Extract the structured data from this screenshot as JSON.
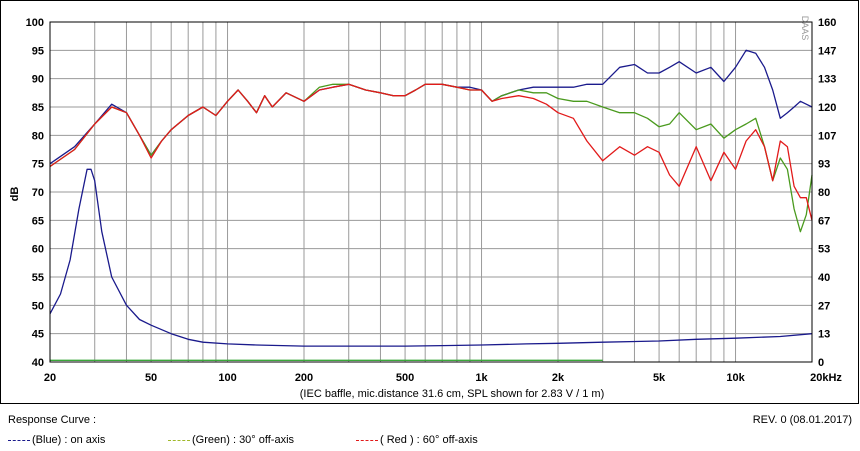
{
  "chart_data": {
    "type": "line",
    "xscale": "log",
    "xlim": [
      20,
      20000
    ],
    "ylim": [
      40,
      100
    ],
    "ylim_right": [
      0,
      160
    ],
    "ylabel": "dB",
    "watermark": "DAAS",
    "caption": "(IEC baffle, mic.distance 31.6 cm, SPL shown for 2.83 V / 1 m)",
    "x_ticks": [
      20,
      50,
      100,
      200,
      500,
      1000,
      2000,
      5000,
      10000,
      20000
    ],
    "x_tick_labels": [
      "20",
      "50",
      "100",
      "200",
      "500",
      "1k",
      "2k",
      "5k",
      "10k",
      "20kHz"
    ],
    "y_ticks": [
      40,
      45,
      50,
      55,
      60,
      65,
      70,
      75,
      80,
      85,
      90,
      95,
      100
    ],
    "y_tick_labels": [
      "40",
      "45",
      "50",
      "55",
      "60",
      "65",
      "70",
      "75",
      "80",
      "85",
      "90",
      "95",
      "100"
    ],
    "y2_tick_labels": [
      "0",
      "13",
      "27",
      "40",
      "53",
      "67",
      "80",
      "93",
      "107",
      "120",
      "133",
      "147",
      "160"
    ],
    "series": [
      {
        "name": "(Blue) : on axis",
        "color": "#1a1a8c",
        "x": [
          20,
          25,
          30,
          35,
          40,
          45,
          50,
          55,
          60,
          70,
          80,
          90,
          100,
          110,
          120,
          130,
          140,
          150,
          170,
          200,
          230,
          260,
          300,
          350,
          400,
          450,
          500,
          550,
          600,
          700,
          800,
          900,
          1000,
          1100,
          1200,
          1400,
          1600,
          1800,
          2000,
          2300,
          2600,
          3000,
          3500,
          4000,
          4500,
          5000,
          5500,
          6000,
          7000,
          8000,
          9000,
          10000,
          11000,
          12000,
          13000,
          14000,
          15000,
          16000,
          17000,
          18000,
          19000,
          20000
        ],
        "y": [
          75,
          78,
          82,
          85.5,
          84,
          80,
          76.5,
          79,
          81,
          83.5,
          85,
          83.5,
          86,
          88,
          86,
          84,
          87,
          85,
          87.5,
          86,
          88,
          88.5,
          89,
          88,
          87.5,
          87,
          87,
          88,
          89,
          89,
          88.5,
          88.5,
          88,
          86,
          87,
          88,
          88.5,
          88.5,
          88.5,
          88.5,
          89,
          89,
          92,
          92.5,
          91,
          91,
          92,
          93,
          91,
          92,
          89.5,
          92,
          95,
          94.5,
          92,
          88,
          83,
          84,
          85,
          86,
          85.5,
          85
        ]
      },
      {
        "name": "(Green) : 30° off-axis",
        "color": "#4a9a1e",
        "x": [
          20,
          25,
          30,
          35,
          40,
          45,
          50,
          55,
          60,
          70,
          80,
          90,
          100,
          110,
          120,
          130,
          140,
          150,
          170,
          200,
          230,
          260,
          300,
          350,
          400,
          450,
          500,
          550,
          600,
          700,
          800,
          900,
          1000,
          1100,
          1200,
          1400,
          1600,
          1800,
          2000,
          2300,
          2600,
          3000,
          3500,
          4000,
          4500,
          5000,
          5500,
          6000,
          7000,
          8000,
          9000,
          10000,
          11000,
          12000,
          13000,
          14000,
          15000,
          16000,
          17000,
          18000,
          19000,
          20000
        ],
        "y": [
          74.5,
          77.5,
          82,
          85,
          84,
          80,
          76.5,
          79,
          81,
          83.5,
          85,
          83.5,
          86,
          88,
          86,
          84,
          87,
          85,
          87.5,
          86,
          88.5,
          89,
          89,
          88,
          87.5,
          87,
          87,
          88,
          89,
          89,
          88.5,
          88,
          88,
          86,
          87,
          88,
          87.5,
          87.5,
          86.5,
          86,
          86,
          85,
          84,
          84,
          83,
          81.5,
          82,
          84,
          81,
          82,
          79.5,
          81,
          82,
          83,
          78,
          72,
          76,
          74,
          67,
          63,
          66,
          73
        ]
      },
      {
        "name": "( Red ) : 60° off-axis",
        "color": "#e21a1a",
        "x": [
          20,
          25,
          30,
          35,
          40,
          45,
          50,
          55,
          60,
          70,
          80,
          90,
          100,
          110,
          120,
          130,
          140,
          150,
          170,
          200,
          230,
          260,
          300,
          350,
          400,
          450,
          500,
          550,
          600,
          700,
          800,
          900,
          1000,
          1100,
          1200,
          1400,
          1600,
          1800,
          2000,
          2300,
          2600,
          3000,
          3500,
          4000,
          4500,
          5000,
          5500,
          6000,
          7000,
          8000,
          9000,
          10000,
          11000,
          12000,
          13000,
          14000,
          15000,
          16000,
          17000,
          18000,
          19000,
          20000
        ],
        "y": [
          74.5,
          77.5,
          82,
          85,
          84,
          80,
          76,
          79,
          81,
          83.5,
          85,
          83.5,
          86,
          88,
          86,
          84,
          87,
          85,
          87.5,
          86,
          88,
          88.5,
          89,
          88,
          87.5,
          87,
          87,
          88,
          89,
          89,
          88.5,
          88,
          88,
          86,
          86.5,
          87,
          86.5,
          85.5,
          84,
          83,
          79,
          75.5,
          78,
          76.5,
          78,
          77,
          73,
          71,
          78,
          72,
          77,
          74,
          79,
          81,
          78,
          72,
          79,
          78,
          71,
          69,
          69,
          65
        ]
      },
      {
        "name": "",
        "color": "#1a1a8c",
        "x": [
          20,
          22,
          24,
          26,
          28,
          29,
          30,
          32,
          35,
          40,
          45,
          50,
          60,
          70,
          80,
          100,
          130,
          200,
          300,
          500,
          700,
          1000,
          1500,
          2000,
          3000,
          5000,
          7000,
          10000,
          15000,
          20000
        ],
        "y": [
          48.5,
          52,
          58,
          67,
          74,
          74,
          72,
          63,
          55,
          50,
          47.5,
          46.5,
          45,
          44,
          43.5,
          43.2,
          43,
          42.8,
          42.8,
          42.8,
          42.9,
          43,
          43.2,
          43.3,
          43.5,
          43.7,
          44,
          44.2,
          44.5,
          45
        ]
      },
      {
        "name": "",
        "color": "#3aa83a",
        "x": [
          20,
          3000
        ],
        "y": [
          40.3,
          40.3
        ]
      }
    ]
  },
  "footer": {
    "title": "Response Curve :",
    "rev": "REV. 0 (08.01.2017)",
    "legend": [
      {
        "label": "(Blue)  : on axis",
        "color": "#1a1a8c"
      },
      {
        "label": "(Green) : 30° off-axis",
        "color": "#a0b82a"
      },
      {
        "label": "( Red ) : 60° off-axis",
        "color": "#e21a1a"
      }
    ]
  }
}
